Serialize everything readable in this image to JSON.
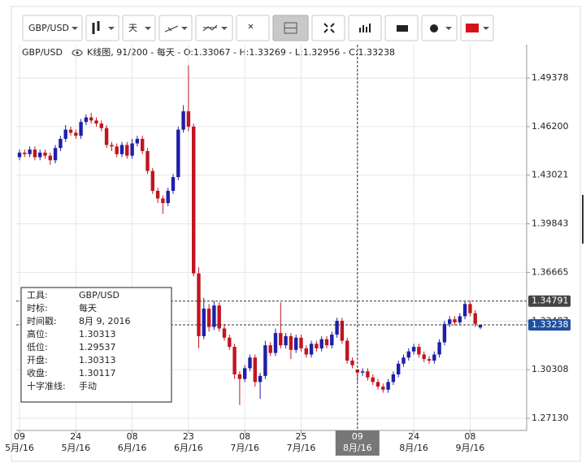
{
  "toolbar": {
    "symbol": "GBP/USD",
    "period": "天"
  },
  "chart_data": {
    "type": "candlestick",
    "symbol": "GBP/USD",
    "subtitle": "K线图, 91/200 - 每天 - O:1.33067 - H:1.33269 - L:1.32956 - C:1.33238",
    "categories": [
      {
        "day": "09",
        "month": "5月/16"
      },
      null,
      null,
      null,
      null,
      null,
      null,
      null,
      null,
      null,
      null,
      {
        "day": "24",
        "month": "5月/16"
      },
      null,
      null,
      null,
      null,
      null,
      null,
      null,
      null,
      null,
      null,
      {
        "day": "08",
        "month": "6月/16"
      },
      null,
      null,
      null,
      null,
      null,
      null,
      null,
      null,
      null,
      null,
      {
        "day": "23",
        "month": "6月/16"
      },
      null,
      null,
      null,
      null,
      null,
      null,
      null,
      null,
      null,
      null,
      {
        "day": "08",
        "month": "7月/16"
      },
      null,
      null,
      null,
      null,
      null,
      null,
      null,
      null,
      null,
      null,
      {
        "day": "25",
        "month": "7月/16"
      },
      null,
      null,
      null,
      null,
      null,
      null,
      null,
      null,
      null,
      null,
      {
        "day": "09",
        "month": "8月/16"
      },
      null,
      null,
      null,
      null,
      null,
      null,
      null,
      null,
      null,
      null,
      {
        "day": "24",
        "month": "8月/16"
      },
      null,
      null,
      null,
      null,
      null,
      null,
      null,
      null,
      null,
      null,
      {
        "day": "08",
        "month": "9月/16"
      },
      null,
      null
    ],
    "open": [
      1.442,
      1.445,
      1.444,
      1.447,
      1.442,
      1.445,
      1.443,
      1.44,
      1.448,
      1.454,
      1.46,
      1.458,
      1.456,
      1.465,
      1.468,
      1.466,
      1.464,
      1.461,
      1.45,
      1.449,
      1.444,
      1.45,
      1.443,
      1.451,
      1.454,
      1.446,
      1.433,
      1.42,
      1.415,
      1.412,
      1.42,
      1.429,
      1.46,
      1.472,
      1.462,
      1.366,
      1.325,
      1.343,
      1.331,
      1.345,
      1.33,
      1.324,
      1.318,
      1.3,
      1.297,
      1.304,
      1.311,
      1.295,
      1.299,
      1.319,
      1.314,
      1.327,
      1.319,
      1.325,
      1.316,
      1.324,
      1.317,
      1.313,
      1.32,
      1.317,
      1.323,
      1.319,
      1.326,
      1.335,
      1.322,
      1.309,
      1.30313,
      1.30117,
      1.302,
      1.298,
      1.295,
      1.292,
      1.29,
      1.295,
      1.3,
      1.307,
      1.311,
      1.315,
      1.318,
      1.313,
      1.31,
      1.309,
      1.313,
      1.321,
      1.333,
      1.336,
      1.334,
      1.338,
      1.346,
      1.34,
      1.33067
    ],
    "high": [
      1.447,
      1.447,
      1.449,
      1.449,
      1.447,
      1.447,
      1.445,
      1.45,
      1.456,
      1.463,
      1.462,
      1.46,
      1.467,
      1.47,
      1.471,
      1.468,
      1.466,
      1.463,
      1.452,
      1.451,
      1.452,
      1.452,
      1.454,
      1.456,
      1.456,
      1.448,
      1.435,
      1.422,
      1.417,
      1.422,
      1.431,
      1.462,
      1.476,
      1.502,
      1.464,
      1.37,
      1.35,
      1.346,
      1.348,
      1.347,
      1.333,
      1.326,
      1.32,
      1.302,
      1.306,
      1.313,
      1.313,
      1.301,
      1.322,
      1.321,
      1.33,
      1.347,
      1.327,
      1.327,
      1.326,
      1.326,
      1.319,
      1.322,
      1.322,
      1.325,
      1.325,
      1.328,
      1.337,
      1.337,
      1.324,
      1.311,
      1.30313,
      1.304,
      1.304,
      1.3,
      1.297,
      1.294,
      1.297,
      1.302,
      1.309,
      1.313,
      1.317,
      1.32,
      1.32,
      1.315,
      1.312,
      1.315,
      1.323,
      1.335,
      1.338,
      1.338,
      1.34,
      1.348,
      1.348,
      1.342,
      1.33269
    ],
    "low": [
      1.44,
      1.442,
      1.442,
      1.44,
      1.44,
      1.441,
      1.437,
      1.438,
      1.446,
      1.452,
      1.456,
      1.454,
      1.454,
      1.463,
      1.464,
      1.462,
      1.459,
      1.448,
      1.446,
      1.442,
      1.442,
      1.441,
      1.441,
      1.449,
      1.444,
      1.431,
      1.418,
      1.412,
      1.405,
      1.41,
      1.418,
      1.427,
      1.458,
      1.459,
      1.364,
      1.317,
      1.323,
      1.328,
      1.329,
      1.328,
      1.322,
      1.316,
      1.297,
      1.28,
      1.295,
      1.302,
      1.292,
      1.284,
      1.297,
      1.312,
      1.312,
      1.317,
      1.317,
      1.31,
      1.314,
      1.315,
      1.311,
      1.311,
      1.315,
      1.315,
      1.317,
      1.317,
      1.324,
      1.32,
      1.307,
      1.304,
      1.29537,
      1.299,
      1.296,
      1.293,
      1.29,
      1.288,
      1.288,
      1.293,
      1.298,
      1.305,
      1.309,
      1.313,
      1.311,
      1.308,
      1.307,
      1.307,
      1.311,
      1.319,
      1.331,
      1.332,
      1.332,
      1.336,
      1.338,
      1.331,
      1.32956
    ],
    "close": [
      1.445,
      1.444,
      1.447,
      1.442,
      1.445,
      1.443,
      1.44,
      1.448,
      1.454,
      1.46,
      1.458,
      1.456,
      1.465,
      1.468,
      1.466,
      1.464,
      1.461,
      1.45,
      1.449,
      1.444,
      1.45,
      1.443,
      1.451,
      1.454,
      1.446,
      1.433,
      1.42,
      1.415,
      1.412,
      1.42,
      1.429,
      1.46,
      1.472,
      1.462,
      1.366,
      1.325,
      1.343,
      1.331,
      1.345,
      1.33,
      1.324,
      1.318,
      1.3,
      1.297,
      1.304,
      1.311,
      1.295,
      1.299,
      1.319,
      1.314,
      1.327,
      1.319,
      1.325,
      1.316,
      1.324,
      1.317,
      1.313,
      1.32,
      1.317,
      1.323,
      1.319,
      1.326,
      1.335,
      1.322,
      1.309,
      1.306,
      1.30117,
      1.302,
      1.298,
      1.295,
      1.292,
      1.29,
      1.295,
      1.3,
      1.307,
      1.311,
      1.315,
      1.318,
      1.313,
      1.31,
      1.309,
      1.313,
      1.321,
      1.333,
      1.336,
      1.334,
      1.338,
      1.346,
      1.34,
      1.333,
      1.33238
    ],
    "up_color": "#1f1fa8",
    "down_color": "#c2151e",
    "ylim": [
      1.26333,
      1.51557
    ],
    "yticks": [
      1.49378,
      {
        "value": 1.462,
        "label": "1.46200"
      },
      1.43021,
      1.39843,
      1.36665,
      1.33487,
      1.30308,
      {
        "value": 1.2713,
        "label": "1.27130"
      }
    ],
    "grid": true,
    "reference_lines": [
      1.34791,
      1.33238
    ],
    "crosshair": 66
  },
  "tooltip": {
    "rows": [
      {
        "label": "工具:",
        "value": "GBP/USD"
      },
      {
        "label": "时标:",
        "value": "每天"
      },
      {
        "label": "时间戳:",
        "value": "8月 9, 2016"
      },
      {
        "label": "高位:",
        "value": "1.30313"
      },
      {
        "label": "低位:",
        "value": "1.29537"
      },
      {
        "label": "开盘:",
        "value": "1.30313"
      },
      {
        "label": "收盘:",
        "value": "1.30117"
      },
      {
        "label": "十字准线:",
        "value": "手动"
      }
    ]
  }
}
